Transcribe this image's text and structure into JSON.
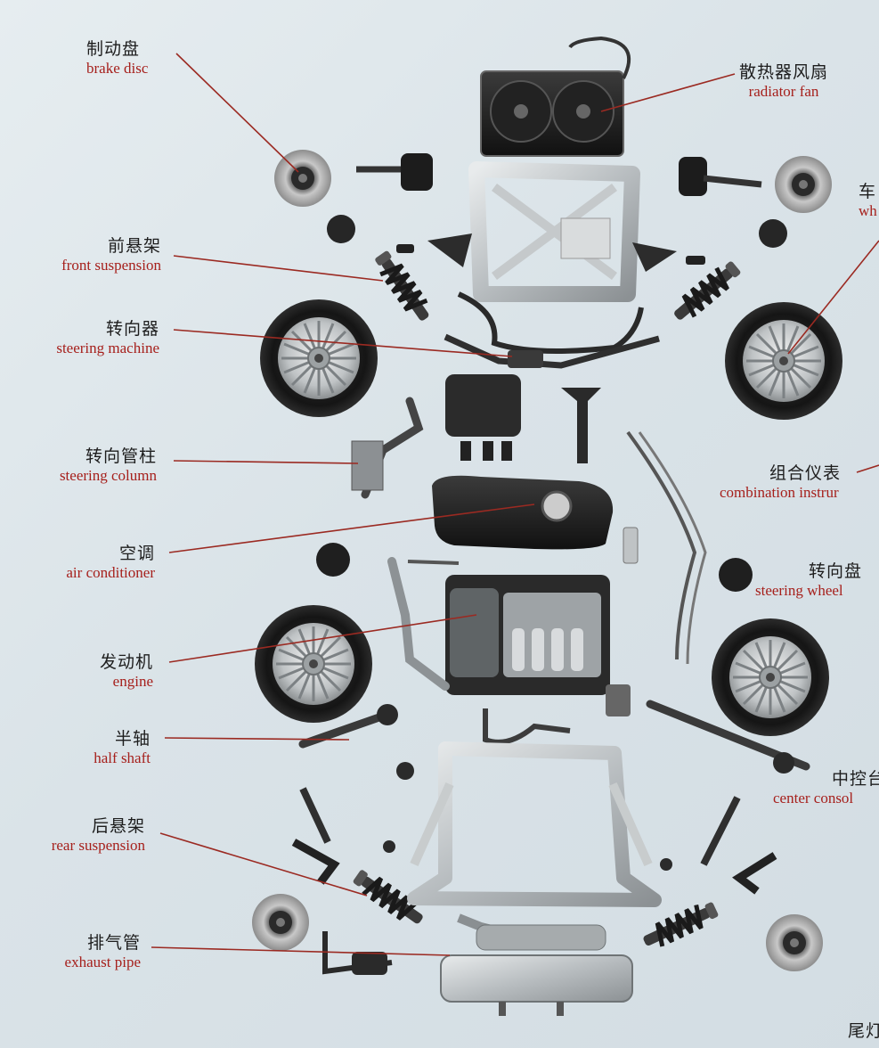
{
  "colors": {
    "accent_red": "#a6201c",
    "leader_line": "#9b2a22",
    "text_dark": "#1d1d1d",
    "background": "#dce5ea"
  },
  "labels": {
    "brake_disc": {
      "zh": "制动盘",
      "en": "brake disc"
    },
    "front_suspension": {
      "zh": "前悬架",
      "en": "front suspension"
    },
    "steering_machine": {
      "zh": "转向器",
      "en": "steering machine"
    },
    "steering_column": {
      "zh": "转向管柱",
      "en": "steering column"
    },
    "air_conditioner": {
      "zh": "空调",
      "en": "air conditioner"
    },
    "engine": {
      "zh": "发动机",
      "en": "engine"
    },
    "half_shaft": {
      "zh": "半轴",
      "en": "half shaft"
    },
    "rear_suspension": {
      "zh": "后悬架",
      "en": "rear suspension"
    },
    "exhaust_pipe": {
      "zh": "排气管",
      "en": "exhaust pipe"
    },
    "radiator_fan": {
      "zh": "散热器风扇",
      "en": "radiator fan"
    },
    "wheel_partial": {
      "zh": "车",
      "en": "wh"
    },
    "combination_instrument": {
      "zh": "组合仪表",
      "en": "combination instrur"
    },
    "steering_wheel": {
      "zh": "转向盘",
      "en": "steering wheel"
    },
    "center_console": {
      "zh": "中控台",
      "en": "center consol"
    },
    "tail_partial": {
      "zh": "尾灯",
      "en": ""
    }
  },
  "icons": [
    "brake-disc-icon",
    "wheel-icon",
    "shock-absorber-icon",
    "radiator-icon",
    "subframe-icon",
    "engine-icon",
    "fuel-tank-icon",
    "exhaust-muffler-icon",
    "fan-icon"
  ]
}
